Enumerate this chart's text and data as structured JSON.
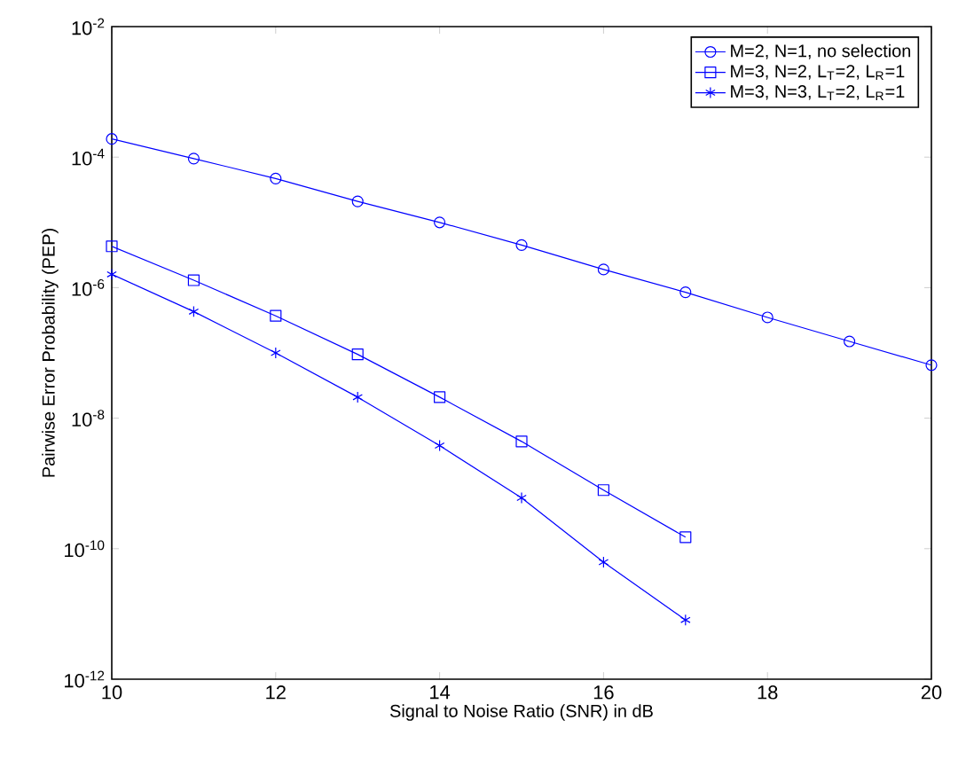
{
  "chart_data": {
    "type": "line",
    "xlabel": "Signal to Noise Ratio (SNR) in dB",
    "ylabel": "Pairwise Error Probability (PEP)",
    "log": "y",
    "legend": "top right",
    "grid": false,
    "line_style": "solid",
    "xlim": [
      10,
      20
    ],
    "xticks": [
      10,
      12,
      14,
      16,
      18,
      20
    ],
    "ylim": [
      1e-12,
      0.01
    ],
    "yticks": [
      {
        "value": 1e-12,
        "label": "10$^{-12}$"
      },
      {
        "value": 1e-10,
        "label": "10$^{-10}$"
      },
      {
        "value": 1e-08,
        "label": "10$^{-8}$"
      },
      {
        "value": 1e-06,
        "label": "10$^{-6}$"
      },
      {
        "value": 0.0001,
        "label": "10$^{-4}$"
      },
      {
        "value": 0.01,
        "label": "10$^{-2}$"
      }
    ],
    "series": [
      {
        "name": "M=2, N=1, no selection",
        "color": "#0000ff",
        "marker": "circle",
        "x": [
          10,
          11,
          12,
          13,
          14,
          15,
          16,
          17,
          18,
          19,
          20
        ],
        "values": [
          0.00019,
          9.5e-05,
          4.7e-05,
          2.1e-05,
          1e-05,
          4.5e-06,
          1.9e-06,
          8.5e-07,
          3.5e-07,
          1.5e-07,
          6.5e-08
        ]
      },
      {
        "name": "M=3, N=2, L$_{T}$=2, L$_{R}$=1",
        "color": "#0000ff",
        "marker": "square",
        "x": [
          10,
          11,
          12,
          13,
          14,
          15,
          16,
          17
        ],
        "values": [
          4.3e-06,
          1.3e-06,
          3.7e-07,
          9.5e-08,
          2.1e-08,
          4.4e-09,
          7.9e-10,
          1.5e-10
        ]
      },
      {
        "name": "M=3, N=3, L$_{T}$=2, L$_{R}$=1",
        "color": "#0000ff",
        "marker": "cross",
        "x": [
          10,
          11,
          12,
          13,
          14,
          15,
          16,
          17
        ],
        "values": [
          1.6e-06,
          4.3e-07,
          1e-07,
          2.1e-08,
          3.8e-09,
          6e-10,
          6.2e-11,
          8.1e-12
        ]
      }
    ]
  }
}
